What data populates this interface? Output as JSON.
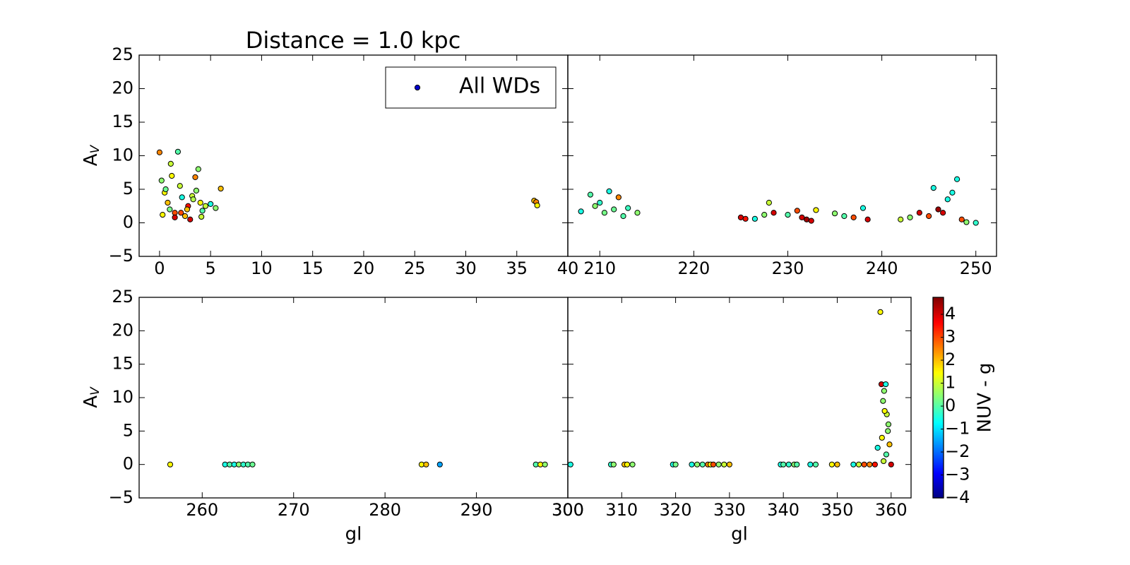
{
  "chart_data": [
    {
      "type": "scatter",
      "title": "Distance = 1.0 kpc",
      "ylabel": "A",
      "ylabel_sub": "V",
      "xlim": [
        -2,
        40
      ],
      "ylim": [
        -5,
        25
      ],
      "xticks": [
        0,
        5,
        10,
        15,
        20,
        25,
        30,
        35,
        40
      ],
      "yticks": [
        {
          "value": -5,
          "label": "−5"
        },
        0,
        5,
        10,
        15,
        20,
        25
      ],
      "legend": "upper right",
      "series": [
        {
          "name": "All WDs",
          "color": "#0000cc",
          "x": [
            0,
            0.2,
            0.5,
            0.8,
            1,
            1.2,
            1.5,
            1.8,
            2,
            2.2,
            2.5,
            2.8,
            3,
            3.2,
            3.5,
            3.8,
            4,
            4.2,
            4.5,
            5,
            5.5,
            6,
            0.3,
            1.5,
            2.7,
            3.3,
            0.6,
            2.1,
            4.1,
            1.1,
            3.6,
            36.7,
            36.9,
            37
          ],
          "y": [
            10.5,
            6.3,
            4.5,
            3,
            2,
            7,
            1.5,
            10.6,
            5.5,
            3.8,
            1,
            2.5,
            0.5,
            4,
            6.8,
            8,
            3,
            1.8,
            2.5,
            2.8,
            2.2,
            5.1,
            1.2,
            0.8,
            2,
            3.5,
            5,
            1.5,
            0.9,
            8.8,
            4.8,
            3.3,
            3.1,
            2.6
          ],
          "c": [
            2.5,
            0.5,
            1.5,
            2,
            0.3,
            1.5,
            3,
            0,
            1,
            -0.5,
            2,
            3.5,
            4,
            1,
            2.5,
            0.5,
            1.5,
            0,
            1,
            -0.5,
            0.5,
            2,
            1.5,
            4,
            2,
            0.8,
            0.2,
            3,
            1,
            1,
            0.5,
            2,
            2.5,
            1.5
          ]
        }
      ]
    },
    {
      "type": "scatter",
      "xlim": [
        206.6,
        252.2
      ],
      "ylim": [
        -5,
        25
      ],
      "xticks": [
        210,
        220,
        230,
        240,
        250
      ],
      "yticks": [
        -5,
        0,
        5,
        10,
        15,
        20,
        25
      ],
      "series": [
        {
          "x": [
            208,
            209,
            209.5,
            210,
            210.5,
            211,
            211.5,
            212,
            212.5,
            213,
            214,
            225,
            225.5,
            226.5,
            227.5,
            228,
            228.5,
            230,
            231,
            231.5,
            232,
            232.5,
            233,
            235,
            236,
            237,
            238,
            238.5,
            242,
            243,
            244,
            245,
            245.5,
            246,
            246.5,
            247,
            247.5,
            248,
            248.5,
            249,
            250
          ],
          "y": [
            1.7,
            4.2,
            2.5,
            3,
            1.5,
            4.7,
            2,
            3.8,
            1,
            2.2,
            1.5,
            0.8,
            0.6,
            0.6,
            1.2,
            3,
            1.5,
            1.2,
            1.8,
            0.8,
            0.5,
            0.3,
            1.9,
            1.4,
            1,
            0.8,
            2.2,
            0.5,
            0.5,
            0.8,
            1.5,
            1,
            5.2,
            2,
            1.5,
            3.5,
            4.5,
            6.5,
            0.5,
            0.1,
            0
          ],
          "c": [
            -0.5,
            0,
            0.5,
            -0.3,
            0.3,
            -0.5,
            0.2,
            2.5,
            0,
            -0.2,
            0.5,
            4,
            3.5,
            -0.5,
            0.5,
            1,
            4,
            0,
            3,
            4,
            4.5,
            4,
            1.5,
            0.5,
            0,
            3,
            -0.5,
            4,
            1,
            0.5,
            4,
            3,
            -0.5,
            4.5,
            4,
            -0.5,
            -0.5,
            -0.5,
            3,
            0.5,
            -0.3
          ]
        }
      ]
    },
    {
      "type": "scatter",
      "ylabel": "A",
      "ylabel_sub": "V",
      "xlabel": "gl",
      "xlim": [
        253.1,
        300
      ],
      "ylim": [
        -5,
        25
      ],
      "xticks": [
        260,
        270,
        280,
        290,
        300
      ],
      "yticks": [
        {
          "value": -5,
          "label": "−5"
        },
        0,
        5,
        10,
        15,
        20,
        25
      ],
      "series": [
        {
          "x": [
            256.5,
            262.5,
            263,
            263.5,
            264,
            264.5,
            265,
            265.5,
            284,
            284.5,
            286,
            296.5,
            297,
            297.5
          ],
          "y": [
            0,
            0,
            0,
            0,
            0,
            0,
            0,
            0,
            0,
            0,
            0,
            0,
            0,
            0
          ],
          "c": [
            1.5,
            -0.5,
            0,
            -0.5,
            0.5,
            -0.3,
            0,
            0.2,
            1.5,
            2,
            -1.5,
            0,
            1.5,
            0.5
          ]
        }
      ]
    },
    {
      "type": "scatter",
      "xlabel": "gl",
      "xlim": [
        300,
        363.7
      ],
      "ylim": [
        -5,
        25
      ],
      "xticks": [
        300,
        310,
        320,
        330,
        340,
        350,
        360
      ],
      "yticks": [
        -5,
        0,
        5,
        10,
        15,
        20,
        25
      ],
      "series": [
        {
          "x": [
            300.5,
            308,
            308.5,
            310.5,
            311,
            312,
            319.5,
            320,
            323,
            324,
            325,
            326,
            326.5,
            327,
            328,
            329,
            330,
            339.5,
            340,
            341,
            342,
            342.5,
            345,
            346,
            349,
            350,
            353,
            354,
            355,
            356,
            357,
            358,
            358.2,
            358.5,
            358.7,
            359,
            359.2,
            359.5,
            359.7,
            360,
            358.3,
            357.5,
            358.8,
            359.1,
            359.4,
            358.6
          ],
          "y": [
            0,
            0,
            0,
            0,
            0,
            0,
            0,
            0,
            0,
            0,
            0,
            0,
            0,
            0,
            0,
            0,
            0,
            0,
            0,
            0,
            0,
            0,
            0,
            0,
            0,
            0,
            0,
            0,
            0,
            0,
            0,
            22.8,
            12,
            9.5,
            11,
            12,
            7.5,
            6,
            3,
            0,
            4,
            2.5,
            8,
            1.5,
            5,
            0.5
          ],
          "c": [
            -0.5,
            -0.3,
            0.5,
            2,
            1.5,
            0.5,
            -0.5,
            0.3,
            -0.5,
            0.5,
            0,
            2.5,
            1.5,
            3,
            0.5,
            1,
            2,
            -0.5,
            0,
            -0.3,
            0.5,
            0,
            -0.5,
            0,
            1.5,
            2,
            -0.5,
            1,
            3,
            2.5,
            3.5,
            1.5,
            4,
            0.5,
            0.5,
            -0.5,
            1,
            0.5,
            2,
            4,
            1.5,
            -0.5,
            1.5,
            0,
            0.5,
            1
          ]
        }
      ]
    }
  ],
  "colorbar": {
    "label": "NUV - g",
    "colormap": "jet",
    "lim": [
      -4,
      4.74
    ],
    "ticks": [
      {
        "value": -4,
        "label": "−4"
      },
      {
        "value": -3,
        "label": "−3"
      },
      {
        "value": -2,
        "label": "−2"
      },
      {
        "value": -1,
        "label": "−1"
      },
      0,
      1,
      2,
      3,
      4
    ]
  }
}
